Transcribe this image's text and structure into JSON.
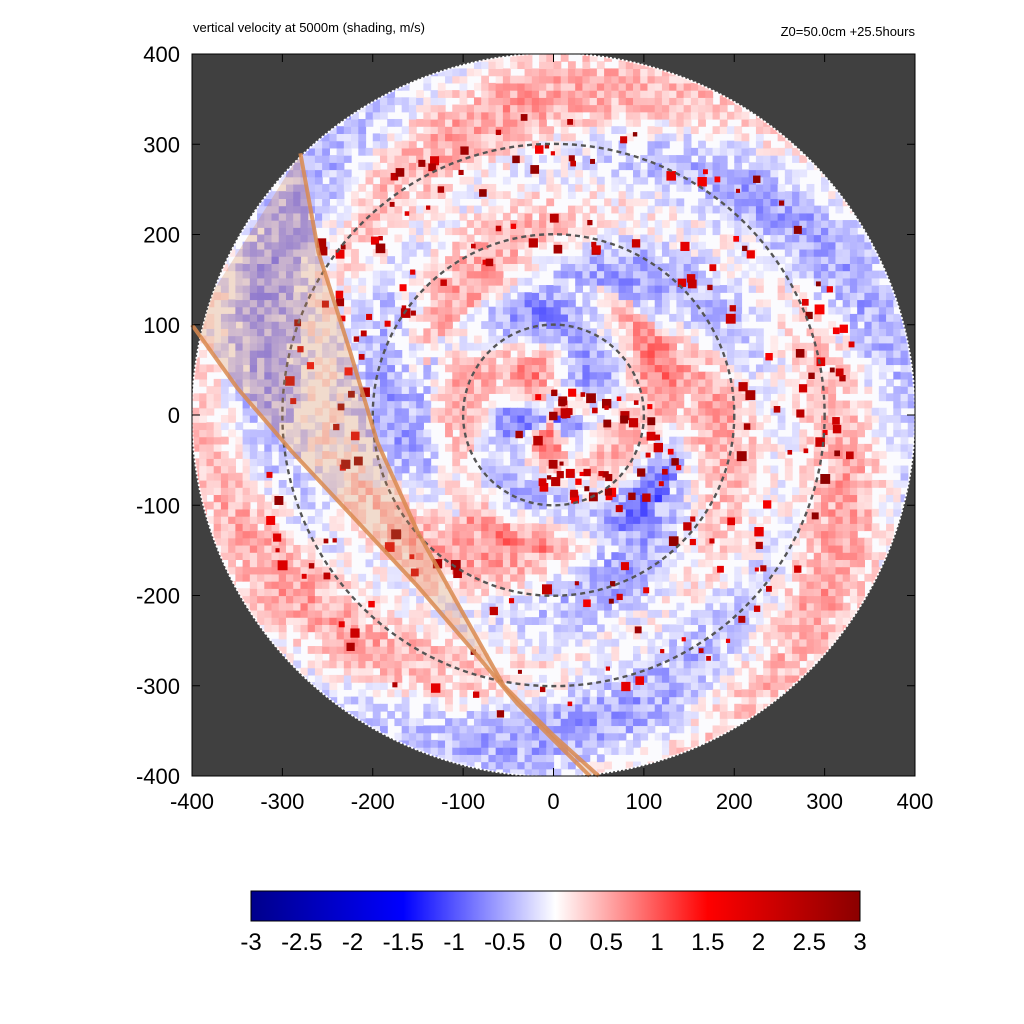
{
  "chart_data": {
    "type": "heatmap",
    "title": "vertical velocity at 5000m (shading, m/s)",
    "subtitle": "Z0=50.0cm  +25.5hours",
    "xlabel": "",
    "ylabel": "",
    "xlim": [
      -400,
      400
    ],
    "ylim": [
      -400,
      400
    ],
    "x_ticks": [
      "-400",
      "-300",
      "-200",
      "-100",
      "0",
      "100",
      "200",
      "300",
      "400"
    ],
    "y_ticks": [
      "400",
      "300",
      "200",
      "100",
      "0",
      "-100",
      "-200",
      "-300",
      "-400"
    ],
    "domain_radius": 400,
    "range_rings_radius": [
      100,
      200,
      300
    ],
    "masked_color": "#404040",
    "colorbar": {
      "min": -3,
      "max": 3,
      "ticks": [
        "-3",
        "-2.5",
        "-2",
        "-1.5",
        "-1",
        "-0.5",
        "0",
        "0.5",
        "1",
        "1.5",
        "2",
        "2.5",
        "3"
      ],
      "colors": [
        "#00008b",
        "#0000ff",
        "#ffffff",
        "#ff0000",
        "#8b0000"
      ]
    },
    "swath": {
      "color": "#d98a50",
      "left_edge": [
        [
          -280,
          290
        ],
        [
          -260,
          180
        ],
        [
          -225,
          70
        ],
        [
          -195,
          -30
        ],
        [
          -150,
          -130
        ],
        [
          -100,
          -220
        ],
        [
          -55,
          -300
        ],
        [
          0,
          -355
        ],
        [
          50,
          -400
        ]
      ],
      "right_edge": [
        [
          -400,
          100
        ],
        [
          -350,
          30
        ],
        [
          -290,
          -40
        ],
        [
          -220,
          -115
        ],
        [
          -150,
          -190
        ],
        [
          -90,
          -260
        ],
        [
          -40,
          -320
        ],
        [
          10,
          -370
        ],
        [
          40,
          -400
        ]
      ]
    }
  }
}
